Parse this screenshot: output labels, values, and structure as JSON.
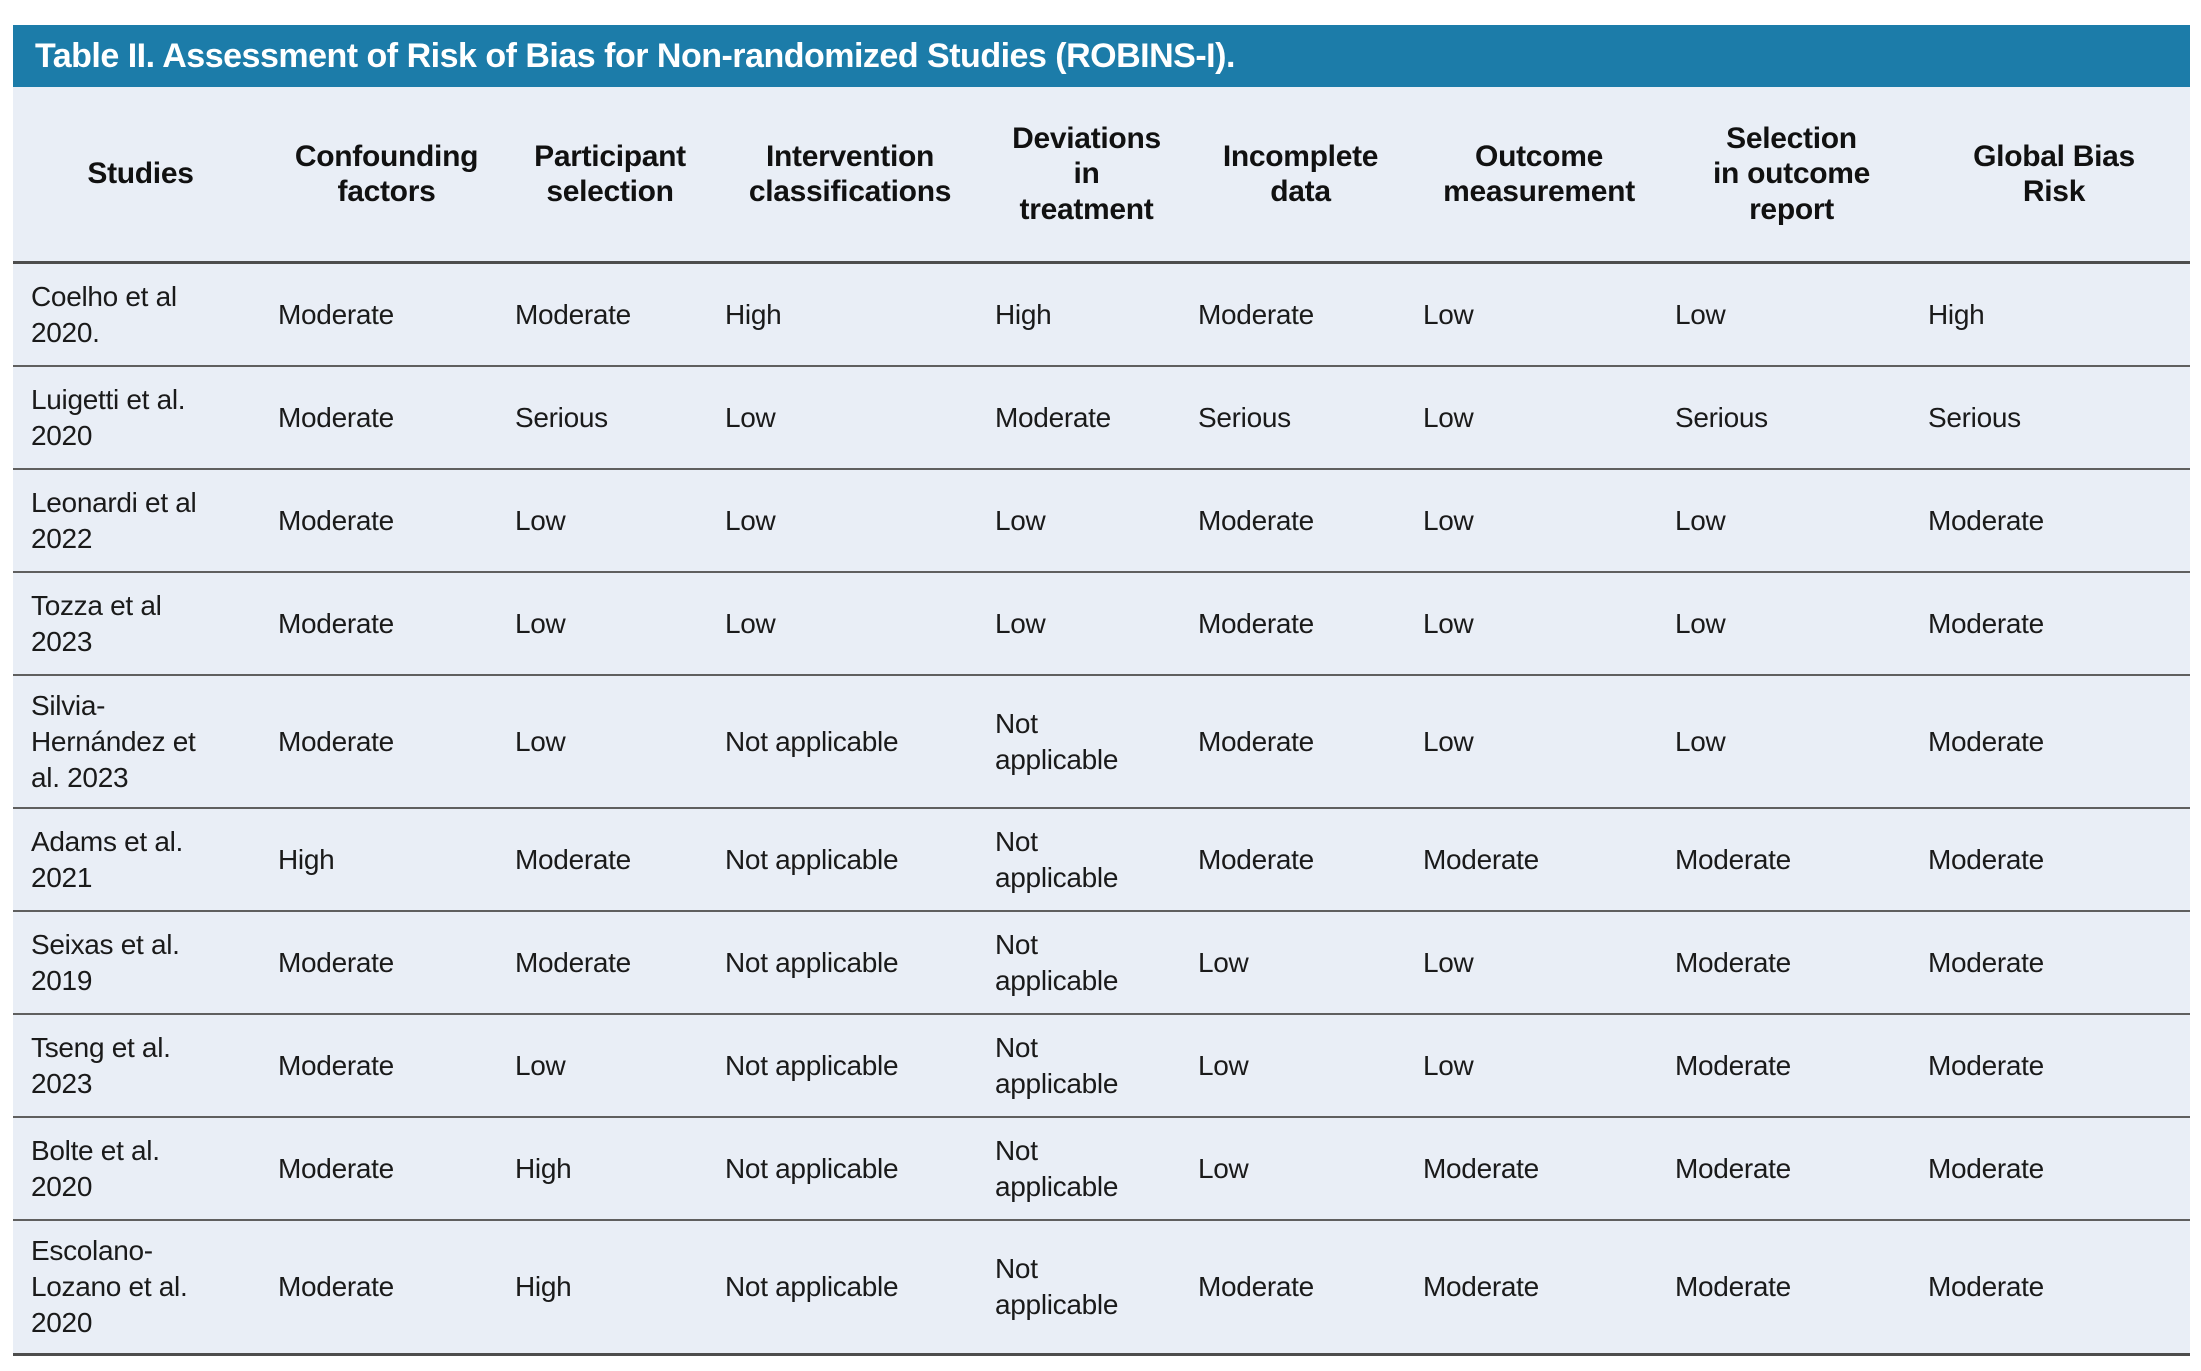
{
  "table": {
    "title": "Table II. Assessment of Risk of Bias for Non-randomized Studies (ROBINS-I).",
    "columns": [
      "Studies",
      "Confounding\nfactors",
      "Participant\nselection",
      "Intervention\nclassifications",
      "Deviations\nin\ntreatment",
      "Incomplete\ndata",
      "Outcome\nmeasurement",
      "Selection\nin outcome\nreport",
      "Global Bias\nRisk"
    ],
    "rows": [
      {
        "study": "Coelho et al\n2020.",
        "values": [
          "Moderate",
          "Moderate",
          "High",
          "High",
          "Moderate",
          "Low",
          "Low",
          "High"
        ]
      },
      {
        "study": "Luigetti et al.\n2020",
        "values": [
          "Moderate",
          "Serious",
          "Low",
          "Moderate",
          "Serious",
          "Low",
          "Serious",
          "Serious"
        ]
      },
      {
        "study": "Leonardi et al\n2022",
        "values": [
          "Moderate",
          "Low",
          "Low",
          "Low",
          "Moderate",
          "Low",
          "Low",
          "Moderate"
        ]
      },
      {
        "study": "Tozza et al\n2023",
        "values": [
          "Moderate",
          "Low",
          "Low",
          "Low",
          "Moderate",
          "Low",
          "Low",
          "Moderate"
        ]
      },
      {
        "study": "Silvia-\nHernández et\nal. 2023",
        "values": [
          "Moderate",
          "Low",
          "Not applicable",
          "Not applicable",
          "Moderate",
          "Low",
          "Low",
          "Moderate"
        ]
      },
      {
        "study": "Adams et al.\n2021",
        "values": [
          "High",
          "Moderate",
          "Not applicable",
          "Not applicable",
          "Moderate",
          "Moderate",
          "Moderate",
          "Moderate"
        ]
      },
      {
        "study": "Seixas et al.\n2019",
        "values": [
          "Moderate",
          "Moderate",
          "Not applicable",
          "Not applicable",
          "Low",
          "Low",
          "Moderate",
          "Moderate"
        ]
      },
      {
        "study": "Tseng et al.\n2023",
        "values": [
          "Moderate",
          "Low",
          "Not applicable",
          "Not applicable",
          "Low",
          "Low",
          "Moderate",
          "Moderate"
        ]
      },
      {
        "study": "Bolte et al.\n2020",
        "values": [
          "Moderate",
          "High",
          "Not applicable",
          "Not applicable",
          "Low",
          "Moderate",
          "Moderate",
          "Moderate"
        ]
      },
      {
        "study": "Escolano-\nLozano et al.\n2020",
        "values": [
          "Moderate",
          "High",
          "Not applicable",
          "Not applicable",
          "Moderate",
          "Moderate",
          "Moderate",
          "Moderate"
        ]
      }
    ]
  },
  "colors": {
    "title_bar": "#1c7ca9",
    "table_background": "#e9eef6",
    "text": "#1a1a1a",
    "row_border": "#5f5f5f"
  }
}
